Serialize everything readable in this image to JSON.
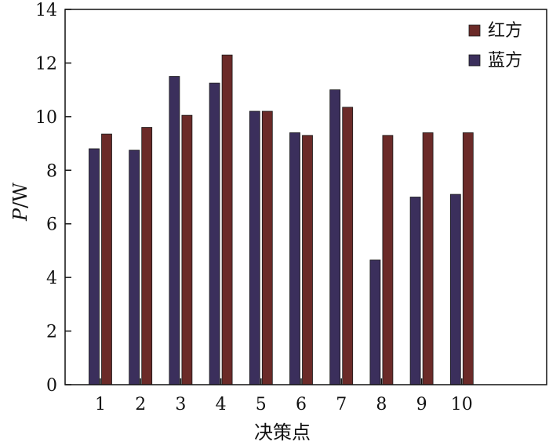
{
  "chart_data": {
    "type": "bar",
    "categories": [
      "1",
      "2",
      "3",
      "4",
      "5",
      "6",
      "7",
      "8",
      "9",
      "10"
    ],
    "series": [
      {
        "name": "蓝方",
        "color": "#3b2f5c",
        "values": [
          8.8,
          8.75,
          11.5,
          11.25,
          10.2,
          9.4,
          11.0,
          4.65,
          7.0,
          7.1
        ]
      },
      {
        "name": "红方",
        "color": "#6b2a28",
        "values": [
          9.35,
          9.6,
          10.05,
          12.3,
          10.2,
          9.3,
          10.35,
          9.3,
          9.4,
          9.4
        ]
      }
    ],
    "xlabel": "决策点",
    "ylabel": {
      "italic": "P",
      "rest": "/W"
    },
    "ylim": [
      0,
      14
    ],
    "yticks": [
      "0",
      "2",
      "4",
      "6",
      "8",
      "10",
      "12",
      "14"
    ],
    "legend_order": [
      1,
      0
    ],
    "legend_position": "top-right",
    "grid": false
  }
}
